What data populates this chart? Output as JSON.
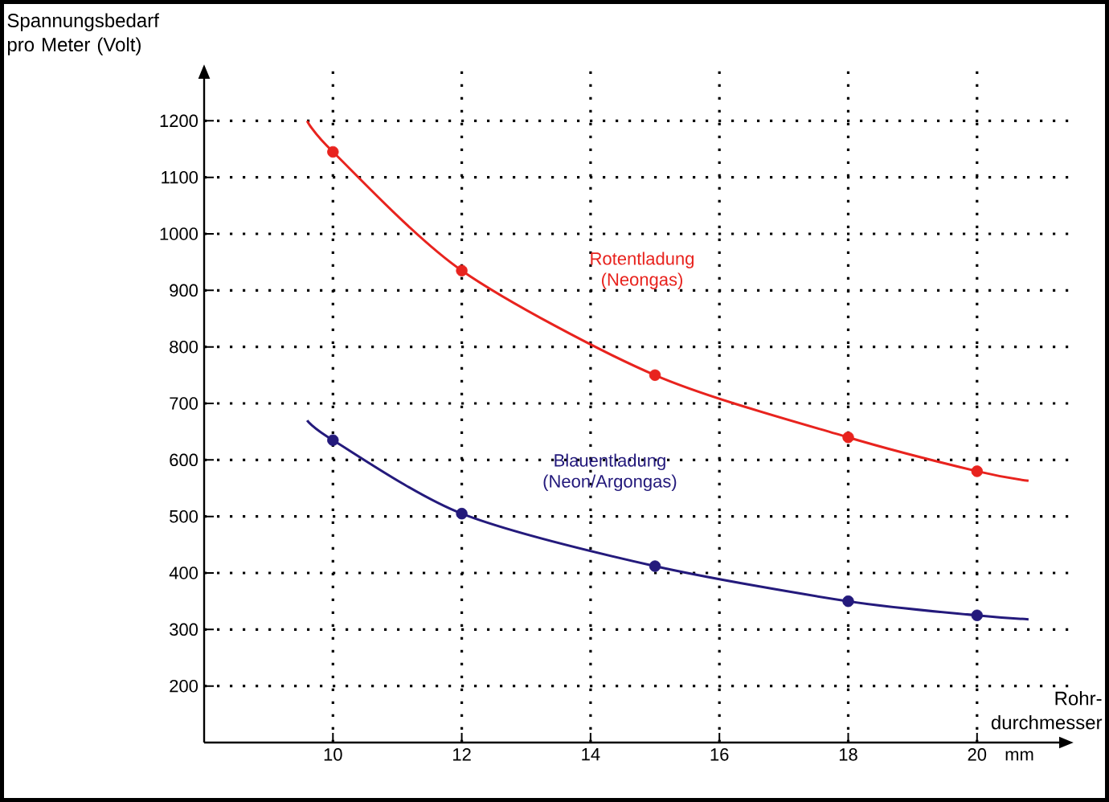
{
  "chart_data": {
    "type": "line",
    "ylabel": "Spannungsbedarf pro Meter (Volt)",
    "xlabel": "Rohr-durchmesser",
    "xlim": [
      8,
      21.5
    ],
    "ylim": [
      100,
      1300
    ],
    "xticks": [
      10,
      12,
      14,
      16,
      18,
      20
    ],
    "yticks": [
      200,
      300,
      400,
      500,
      600,
      700,
      800,
      900,
      1000,
      1100,
      1200
    ],
    "grid": true,
    "series": [
      {
        "color": "#e8231e",
        "marker": "none",
        "x": [
          9.6,
          10,
          12,
          15,
          18,
          20,
          20.8
        ],
        "values": [
          1200,
          1145,
          935,
          750,
          640,
          580,
          563
        ]
      },
      {
        "type": "scatter",
        "color": "#e8231e",
        "marker": "circle",
        "x": [
          10,
          12,
          15,
          18,
          20
        ],
        "values": [
          1145,
          935,
          750,
          640,
          580
        ]
      },
      {
        "color": "#241a7c",
        "marker": "none",
        "x": [
          9.6,
          10,
          12,
          15,
          18,
          20,
          20.8
        ],
        "values": [
          670,
          635,
          505,
          412,
          350,
          325,
          318
        ]
      },
      {
        "type": "scatter",
        "color": "#241a7c",
        "marker": "circle",
        "x": [
          10,
          12,
          15,
          18,
          20
        ],
        "values": [
          635,
          505,
          412,
          350,
          325
        ]
      }
    ],
    "annotations": [
      "Rotentladung (Neongas)",
      "Blauentladung (Neon/Argongas)",
      "mm"
    ]
  }
}
